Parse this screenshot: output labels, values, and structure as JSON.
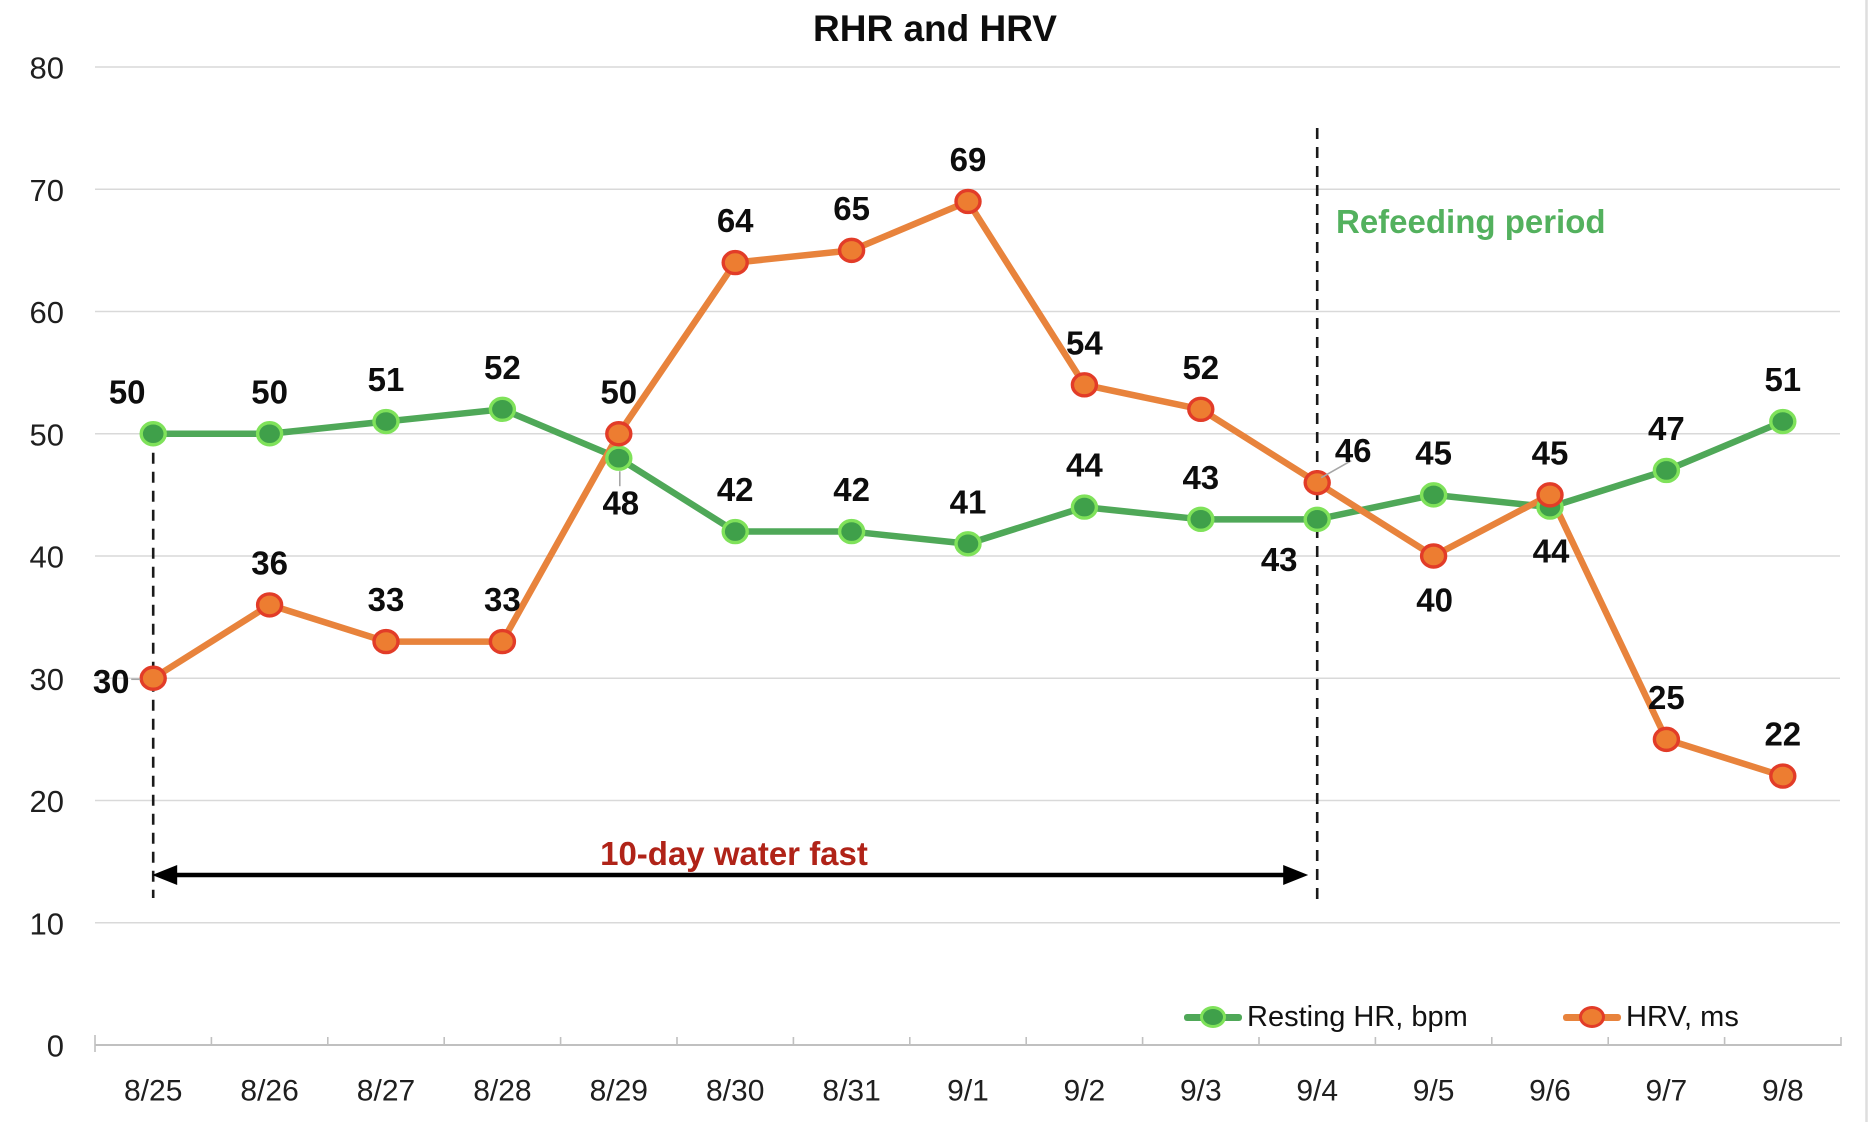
{
  "title": "RHR and HRV",
  "chart_data": {
    "type": "line",
    "title": "RHR and HRV",
    "categories": [
      "8/25",
      "8/26",
      "8/27",
      "8/28",
      "8/29",
      "8/30",
      "8/31",
      "9/1",
      "9/2",
      "9/3",
      "9/4",
      "9/5",
      "9/6",
      "9/7",
      "9/8"
    ],
    "ylim": [
      0,
      80
    ],
    "ytick_step": 10,
    "ytick_labels": [
      "0",
      "10",
      "20",
      "30",
      "40",
      "50",
      "60",
      "70",
      "80"
    ],
    "grid": true,
    "legend_position": "bottom-right",
    "series": [
      {
        "name": "Resting HR, bpm",
        "values": [
          50,
          50,
          51,
          52,
          48,
          42,
          42,
          41,
          44,
          43,
          43,
          45,
          44,
          47,
          51
        ],
        "color": "#4FA858",
        "marker_fill": "#3FA04A",
        "marker_ring": "#7FE25A",
        "label_pos": [
          "above-left",
          "above",
          "above",
          "above",
          "below-leader",
          "above",
          "above",
          "above",
          "above",
          "above",
          "below-left",
          "above",
          "below",
          "above",
          "above"
        ]
      },
      {
        "name": "HRV, ms",
        "values": [
          30,
          36,
          33,
          33,
          50,
          64,
          65,
          69,
          54,
          52,
          46,
          40,
          45,
          25,
          22
        ],
        "color": "#E8833C",
        "marker_fill": "#ED7D31",
        "marker_ring": "#E23C28",
        "label_pos": [
          "left-leader",
          "above",
          "above",
          "above",
          "above",
          "above",
          "above",
          "above",
          "above",
          "above",
          "above-right-leader",
          "below",
          "above",
          "above",
          "above"
        ]
      }
    ],
    "annotations": [
      {
        "id": "fast",
        "text": "10-day water fast",
        "color": "#B02318",
        "span": [
          "8/25",
          "9/4"
        ]
      },
      {
        "id": "refeed",
        "text": "Refeeding period",
        "color": "#53B15E",
        "starts_at": "9/4"
      }
    ],
    "colors": {
      "gridline": "#d9d9d9",
      "axis": "#c0c0c0",
      "dashed_line": "#1a1a1a",
      "arrow": "#000000",
      "leader": "#a6a6a6",
      "data_label": "#0d0d0d",
      "tick_label": "#1f1f1f"
    }
  }
}
